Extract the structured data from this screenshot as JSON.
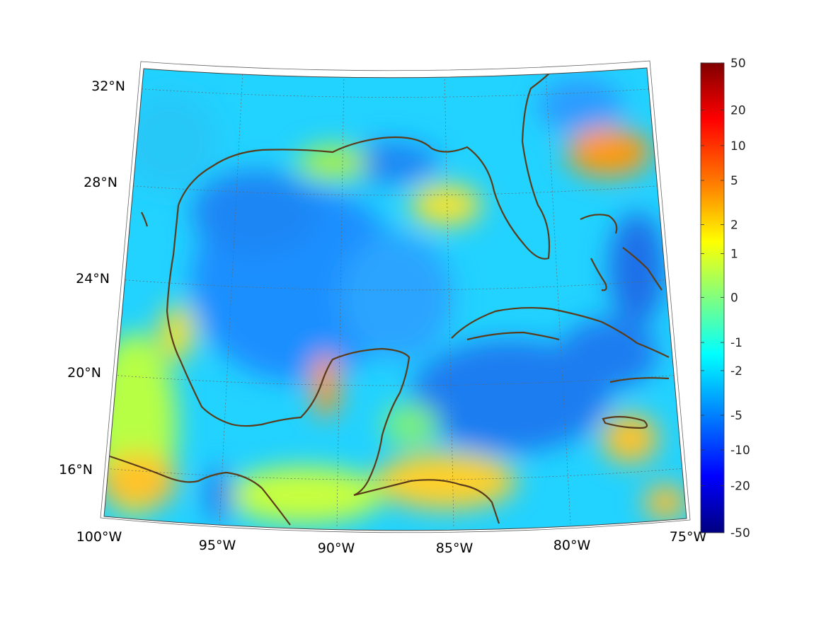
{
  "map": {
    "projection": "conic",
    "lon_range": [
      -100,
      -75
    ],
    "lat_range": [
      14,
      32
    ],
    "lat_ticks": [
      {
        "value": 32,
        "label": "32°N"
      },
      {
        "value": 28,
        "label": "28°N"
      },
      {
        "value": 24,
        "label": "24°N"
      },
      {
        "value": 20,
        "label": "20°N"
      },
      {
        "value": 16,
        "label": "16°N"
      }
    ],
    "lon_ticks": [
      {
        "value": -100,
        "label": "100°W"
      },
      {
        "value": -95,
        "label": "95°W"
      },
      {
        "value": -90,
        "label": "90°W"
      },
      {
        "value": -85,
        "label": "85°W"
      },
      {
        "value": -80,
        "label": "80°W"
      },
      {
        "value": -75,
        "label": "75°W"
      }
    ],
    "grid": true,
    "coastline_color": "#5a3b1a",
    "colormap": "jet"
  },
  "colorbar": {
    "ticks": [
      "50",
      "20",
      "10",
      "5",
      "2",
      "1",
      "0",
      "-1",
      "-2",
      "-5",
      "-10",
      "-20",
      "-50"
    ],
    "colors": [
      "#800000",
      "#ff0000",
      "#ff8000",
      "#ffff00",
      "#80ff80",
      "#00ffff",
      "#0080ff",
      "#0000ff",
      "#000080"
    ]
  }
}
